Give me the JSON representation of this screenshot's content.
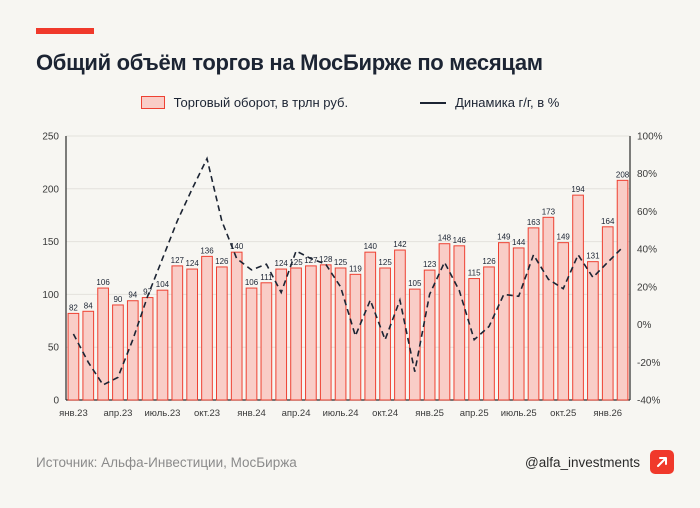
{
  "header": {
    "title": "Общий объём торгов на МосБирже по месяцам"
  },
  "legend": {
    "bar_label": "Торговый оборот, в трлн руб.",
    "line_label": "Динамика г/г, в %"
  },
  "footer": {
    "source": "Источник: Альфа-Инвестиции, МосБиржа",
    "handle": "@alfa_investments"
  },
  "colors": {
    "background": "#f7f6f2",
    "accent_red": "#f0392b",
    "bar_fill": "#f9cdc7",
    "bar_stroke": "#ee4132",
    "line": "#1c2433",
    "grid": "#e3e1dc",
    "axis": "#2b2b2b",
    "tick": "#3a3a3a",
    "text": "#1c2433",
    "source_text": "#8b8b8b"
  },
  "chart_data": {
    "type": "bar+line",
    "title": "Общий объём торгов на МосБирже по месяцам",
    "legend_position": "top",
    "grid": true,
    "bar_series": {
      "name": "Торговый оборот, в трлн руб.",
      "axis": "left",
      "values": [
        82,
        84,
        106,
        90,
        94,
        97,
        104,
        127,
        124,
        136,
        126,
        140,
        106,
        111,
        124,
        125,
        127,
        128,
        125,
        119,
        140,
        125,
        142,
        105,
        123,
        148,
        146,
        115,
        126,
        149,
        144,
        163,
        173,
        149,
        194,
        131,
        164,
        208
      ]
    },
    "line_series": {
      "name": "Динамика г/г, в %",
      "axis": "right",
      "style": "dashed",
      "values": [
        -5,
        -20,
        -32,
        -28,
        -8,
        15,
        35,
        55,
        72,
        88,
        55,
        35,
        29,
        32,
        17,
        39,
        35,
        32,
        20,
        -6,
        13,
        -8,
        13,
        -25,
        16,
        33,
        18,
        -8,
        -1,
        16,
        15,
        37,
        24,
        19,
        37,
        25,
        33,
        41
      ]
    },
    "x_ticks": [
      {
        "index": 0,
        "label": "янв.23"
      },
      {
        "index": 3,
        "label": "апр.23"
      },
      {
        "index": 6,
        "label": "июль.23"
      },
      {
        "index": 9,
        "label": "окт.23"
      },
      {
        "index": 12,
        "label": "янв.24"
      },
      {
        "index": 15,
        "label": "апр.24"
      },
      {
        "index": 18,
        "label": "июль.24"
      },
      {
        "index": 21,
        "label": "окт.24"
      },
      {
        "index": 24,
        "label": "янв.25"
      },
      {
        "index": 27,
        "label": "апр.25"
      },
      {
        "index": 30,
        "label": "июль.25"
      },
      {
        "index": 33,
        "label": "окт.25"
      },
      {
        "index": 36,
        "label": "янв.26"
      }
    ],
    "left_axis": {
      "min": 0,
      "max": 250,
      "ticks": [
        0,
        50,
        100,
        150,
        200,
        250
      ]
    },
    "right_axis": {
      "min": -40,
      "max": 100,
      "ticks": [
        {
          "value": -40,
          "label": "-40%"
        },
        {
          "value": -20,
          "label": "-20%"
        },
        {
          "value": 0,
          "label": "0%"
        },
        {
          "value": 20,
          "label": "20%"
        },
        {
          "value": 40,
          "label": "40%"
        },
        {
          "value": 60,
          "label": "60%"
        },
        {
          "value": 80,
          "label": "80%"
        },
        {
          "value": 100,
          "label": "100%"
        }
      ]
    }
  }
}
